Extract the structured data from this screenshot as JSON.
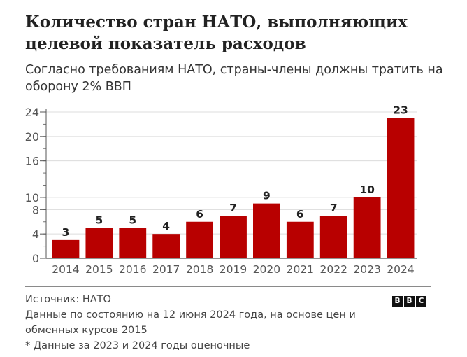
{
  "header": {
    "title": "Количество стран НАТО, выполняющих целевой показатель расходов",
    "subtitle": "Согласно требованиям НАТО, страны-члены должны тратить на оборону 2% ВВП"
  },
  "chart_data": {
    "type": "bar",
    "categories": [
      "2014",
      "2015",
      "2016",
      "2017",
      "2018",
      "2019",
      "2020",
      "2021",
      "2022",
      "2023",
      "2024"
    ],
    "values": [
      3,
      5,
      5,
      4,
      6,
      7,
      9,
      6,
      7,
      10,
      23
    ],
    "data_labels": [
      "3",
      "5",
      "5",
      "4",
      "6",
      "7",
      "9",
      "6",
      "7",
      "10",
      "23"
    ],
    "y_ticks": [
      0,
      4,
      8,
      10,
      16,
      20,
      24
    ],
    "y_tick_labels": [
      "0",
      "4",
      "8",
      "10",
      "16",
      "20",
      "24"
    ],
    "ylim": [
      0,
      24
    ],
    "grid": true,
    "bar_color": "#b80000"
  },
  "footer": {
    "source": "Источник: НАТО",
    "note1": "Данные по состоянию на 12 июня 2024 года, на основе цен и обменных курсов 2015",
    "note2": "* Данные за 2023 и 2024 годы оценочные",
    "logo_letters": [
      "B",
      "B",
      "C"
    ]
  }
}
